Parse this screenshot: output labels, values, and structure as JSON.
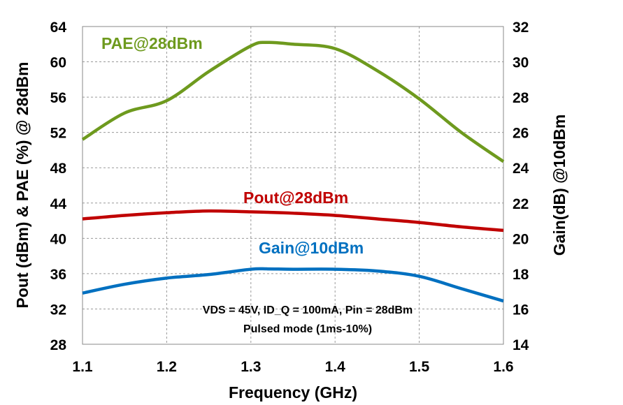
{
  "chart_data": {
    "type": "line",
    "xlabel": "Frequency (GHz)",
    "ylabel_left": "Pout (dBm) & PAE (%) @ 28dBm",
    "ylabel_right": "Gain(dB) @10dBm",
    "xlim": [
      1.1,
      1.6
    ],
    "ylim_left": [
      28,
      64
    ],
    "ylim_right": [
      14,
      32
    ],
    "x_ticks": [
      "1.1",
      "1.2",
      "1.3",
      "1.4",
      "1.5",
      "1.6"
    ],
    "y_ticks_left": [
      "28",
      "32",
      "36",
      "40",
      "44",
      "48",
      "52",
      "56",
      "60",
      "64"
    ],
    "y_ticks_right": [
      "14",
      "16",
      "18",
      "20",
      "22",
      "24",
      "26",
      "28",
      "30",
      "32"
    ],
    "grid": true,
    "x": [
      1.1,
      1.15,
      1.2,
      1.25,
      1.3,
      1.32,
      1.35,
      1.4,
      1.45,
      1.5,
      1.55,
      1.6
    ],
    "series": [
      {
        "name": "PAE@28dBm",
        "axis": "left",
        "color": "#6e9a1e",
        "values": [
          51.2,
          54.2,
          55.6,
          58.9,
          61.8,
          62.2,
          62.0,
          61.5,
          59.0,
          55.8,
          52.0,
          48.7
        ]
      },
      {
        "name": "Pout@28dBm",
        "axis": "left",
        "color": "#c00000",
        "values": [
          42.2,
          42.6,
          42.9,
          43.1,
          43.0,
          42.95,
          42.85,
          42.6,
          42.2,
          41.8,
          41.3,
          40.9
        ]
      },
      {
        "name": "Gain@10dBm",
        "axis": "right",
        "color": "#0070c0",
        "values": [
          16.9,
          17.4,
          17.75,
          17.95,
          18.25,
          18.27,
          18.25,
          18.25,
          18.15,
          17.85,
          17.15,
          16.45
        ]
      }
    ],
    "annotations": [
      "VDS = 45V, ID_Q = 100mA, Pin = 28dBm",
      "Pulsed mode (1ms-10%)"
    ]
  }
}
